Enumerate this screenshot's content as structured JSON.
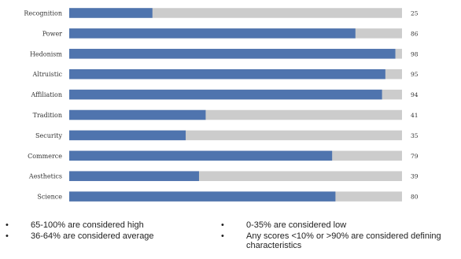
{
  "chart_data": {
    "type": "bar",
    "orientation": "horizontal",
    "categories": [
      "Recognition",
      "Power",
      "Hedonism",
      "Altruistic",
      "Affiliation",
      "Tradition",
      "Security",
      "Commerce",
      "Aesthetics",
      "Science"
    ],
    "values": [
      25,
      86,
      98,
      95,
      94,
      41,
      35,
      79,
      39,
      80
    ],
    "xlim": [
      0,
      100
    ],
    "grid": false,
    "colors": {
      "bar": "#4f74ae",
      "track": "#cccccc"
    }
  },
  "notes": [
    "65-100% are considered high",
    "36-64% are considered average",
    "0-35% are considered low",
    "Any scores <10% or >90% are considered defining characteristics"
  ],
  "bullet_symbol": "•"
}
